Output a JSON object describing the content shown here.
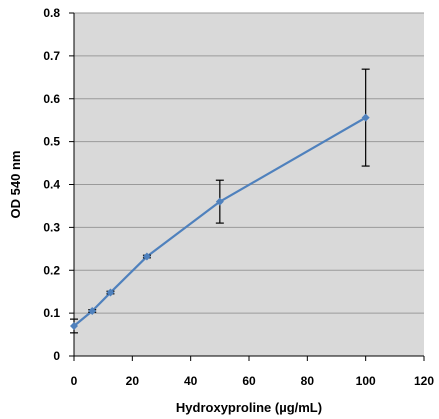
{
  "chart_data": {
    "type": "line",
    "title": "",
    "xlabel": "Hydroxyproline (µg/mL)",
    "ylabel": "OD 540 nm",
    "xlim": [
      0,
      120
    ],
    "ylim": [
      0,
      0.8
    ],
    "x_ticks": [
      0,
      20,
      40,
      60,
      80,
      100,
      120
    ],
    "y_ticks": [
      0,
      0.1,
      0.2,
      0.3,
      0.4,
      0.5,
      0.6,
      0.7,
      0.8
    ],
    "x_tick_labels": [
      "0",
      "20",
      "40",
      "60",
      "80",
      "100",
      "120"
    ],
    "y_tick_labels": [
      "0",
      "0.1",
      "0.2",
      "0.3",
      "0.4",
      "0.5",
      "0.6",
      "0.7",
      "0.8"
    ],
    "grid": "horizontal",
    "legend": "none",
    "series": [
      {
        "x": [
          0,
          6.25,
          12.5,
          25,
          50,
          100
        ],
        "y": [
          0.07,
          0.105,
          0.148,
          0.232,
          0.36,
          0.556
        ],
        "error": [
          0.016,
          0.003,
          0.003,
          0.003,
          0.05,
          0.113
        ]
      }
    ],
    "colors": {
      "plot_background": "#d9d9d9",
      "grid": "#9a9a9a",
      "line": "#4f81bd",
      "marker": "#4f81bd",
      "error_bar": "#000000"
    }
  }
}
